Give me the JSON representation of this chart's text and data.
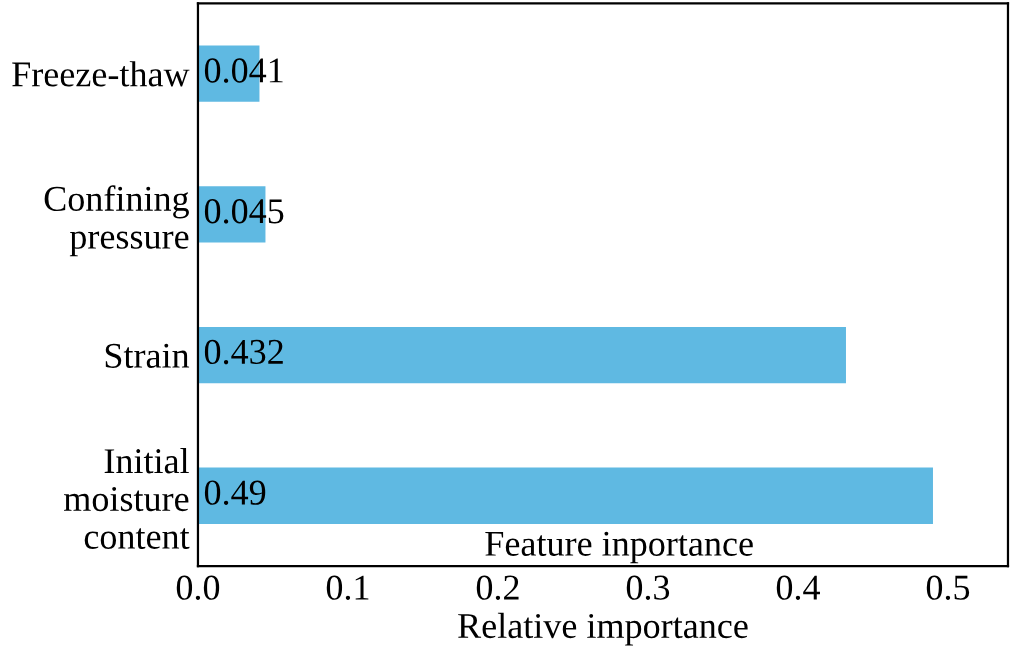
{
  "chart_data": {
    "type": "bar",
    "orientation": "horizontal",
    "categories": [
      "Freeze-thaw",
      "Confining\npressure",
      "Strain",
      "Initial\nmoisture\ncontent"
    ],
    "values": [
      0.041,
      0.045,
      0.432,
      0.49
    ],
    "color": "#5fb9e2",
    "data_labels": true,
    "xlim": [
      0,
      0.54
    ],
    "xticks": [
      {
        "value": 0,
        "label": "0.0"
      },
      {
        "value": 0.1,
        "label": "0.1"
      },
      {
        "value": 0.2,
        "label": "0.2"
      },
      {
        "value": 0.3,
        "label": "0.3"
      },
      {
        "value": 0.4,
        "label": "0.4"
      },
      {
        "value": 0.5,
        "label": "0.5"
      }
    ],
    "xlabel": "Relative importance",
    "annotations": [
      "Feature inportance"
    ],
    "grid": false,
    "legend": false
  }
}
